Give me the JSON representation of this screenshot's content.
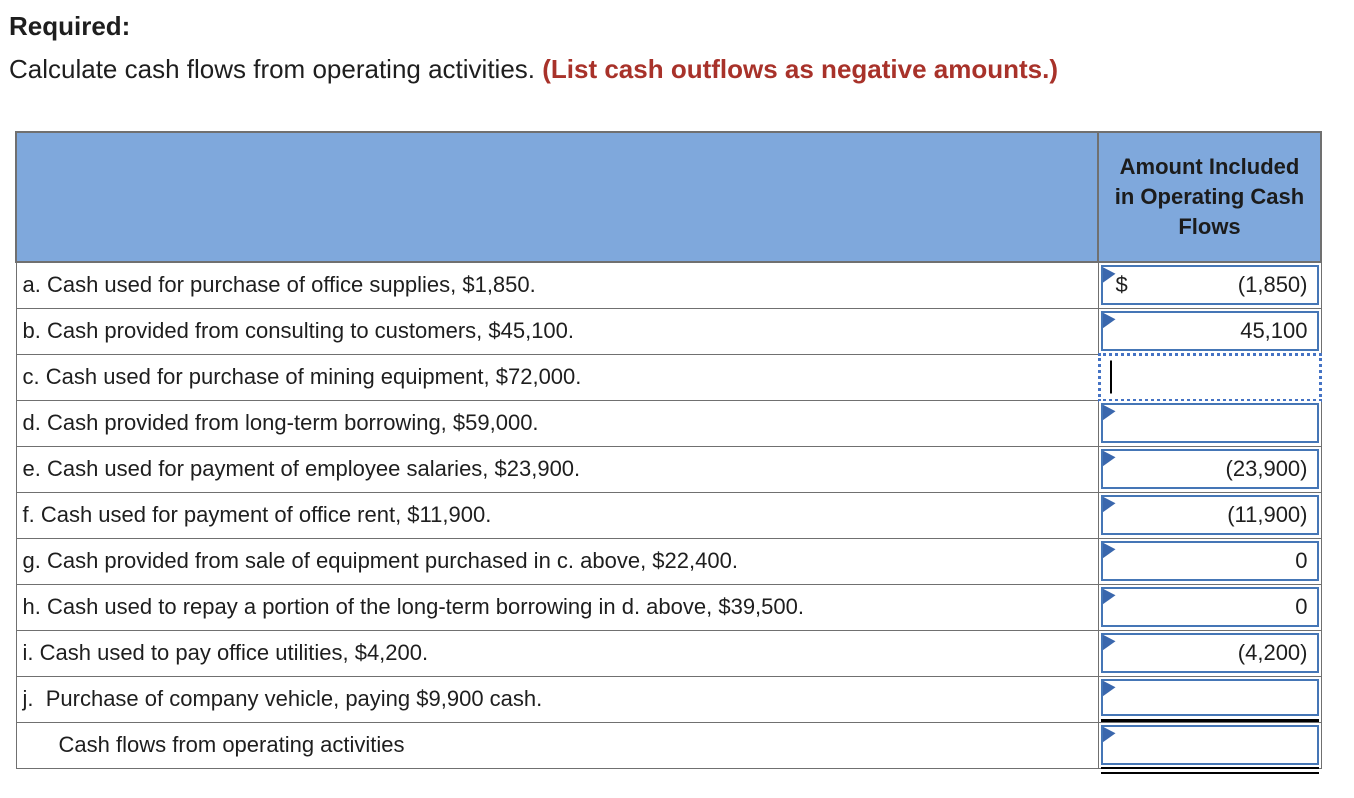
{
  "page": {
    "heading": "Required:",
    "instruction": "Calculate cash flows from operating activities. ",
    "instruction_warning": "(List cash outflows as negative amounts.)"
  },
  "colors": {
    "header_blue": "#7fa8dc",
    "grid_gray": "#707070",
    "cell_border_blue": "#4576b6",
    "flag_blue": "#3a67ad",
    "focus_dotted_blue": "#4573c4",
    "warning_red": "#a8322a",
    "text": "#1e1e1e"
  },
  "table": {
    "header": {
      "amount_column": "Amount Included in Operating Cash Flows"
    },
    "rows": [
      {
        "label": "a. Cash used for purchase of office supplies, $1,850.",
        "prefix": "$",
        "value": "(1,850)"
      },
      {
        "label": "b. Cash provided from consulting to customers, $45,100.",
        "value": "45,100"
      },
      {
        "label": "c. Cash used for purchase of mining equipment, $72,000.",
        "value": ""
      },
      {
        "label": "d. Cash provided from long-term borrowing, $59,000.",
        "value": ""
      },
      {
        "label": "e. Cash used for payment of employee salaries, $23,900.",
        "value": "(23,900)"
      },
      {
        "label": "f. Cash used for payment of office rent, $11,900.",
        "value": "(11,900)"
      },
      {
        "label": "g. Cash provided from sale of equipment purchased in c. above, $22,400.",
        "value": "0"
      },
      {
        "label": "h. Cash used to repay a portion of the long-term borrowing in d. above, $39,500.",
        "value": "0"
      },
      {
        "label": "i. Cash used to pay office utilities, $4,200.",
        "value": "(4,200)"
      },
      {
        "label": "j.  Purchase of company vehicle, paying $9,900 cash.",
        "value": ""
      },
      {
        "label": "Cash flows from operating activities",
        "value": ""
      }
    ]
  }
}
